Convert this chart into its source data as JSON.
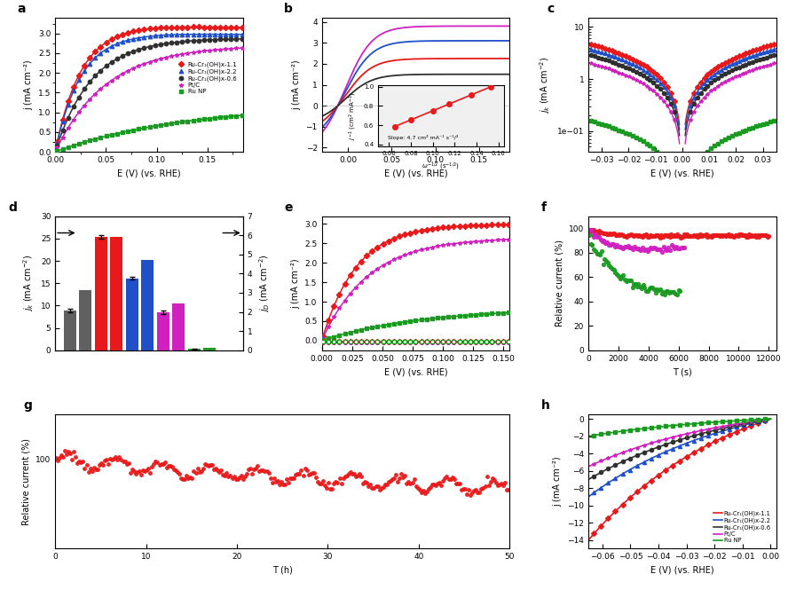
{
  "colors": {
    "red": "#e8191a",
    "blue": "#2050c8",
    "black": "#303030",
    "gray": "#606060",
    "magenta": "#d020c0",
    "green": "#1a9a20"
  },
  "panel_a": {
    "xlabel": "E (V) (vs. RHE)",
    "ylabel": "j (mA cm⁻²)",
    "xlim": [
      0.0,
      0.185
    ],
    "ylim": [
      0.0,
      3.4
    ],
    "legend": [
      "Ru-Cr₁(OH)x-1.1",
      "Ru-Cr₁(OH)x-2.2",
      "Ru-Cr₁(OH)x-0.6",
      "Pt/C",
      "Ru NP"
    ]
  },
  "panel_b": {
    "xlabel": "E (V) (vs. RHE)",
    "ylabel": "j (mA cm⁻²)",
    "xlim": [
      -0.03,
      0.185
    ],
    "ylim": [
      -2.2,
      4.2
    ]
  },
  "panel_c": {
    "xlabel": "E (V) (vs. RHE)",
    "ylabel": "jk (mA cm⁻²)",
    "xlim": [
      -0.035,
      0.035
    ],
    "ylim": [
      0.04,
      15
    ]
  },
  "panel_d": {
    "ylabel_left": "jk (mA cm⁻²)",
    "ylabel_right": "jD (mA cm⁻²)",
    "js_values": [
      8.9,
      25.3,
      16.1,
      8.5,
      0.3
    ],
    "jd_values": [
      3.15,
      5.92,
      4.72,
      2.45,
      0.12
    ],
    "js_errors": [
      0.4,
      0.4,
      0.25,
      0.4,
      0.1
    ],
    "ylim_left": [
      0,
      30
    ],
    "ylim_right": [
      0,
      7
    ]
  },
  "panel_e": {
    "xlabel": "E (V) (vs. RHE)",
    "ylabel": "j (mA cm⁻²)",
    "xlim": [
      0.0,
      0.155
    ],
    "ylim": [
      -0.25,
      3.2
    ]
  },
  "panel_f": {
    "xlabel": "T (s)",
    "ylabel": "Relative current (%)",
    "xlim": [
      0,
      12500
    ],
    "ylim": [
      0,
      110
    ],
    "yticks": [
      0,
      20,
      40,
      60,
      80,
      100
    ]
  },
  "panel_g": {
    "xlabel": "T (h)",
    "ylabel": "Relative current (%)",
    "xlim": [
      0,
      50
    ],
    "ylim": [
      80,
      110
    ],
    "yticks": [
      100
    ]
  },
  "panel_h": {
    "xlabel": "E (V) (vs. RHE)",
    "ylabel": "j (mA cm⁻²)",
    "xlim": [
      -0.065,
      0.002
    ],
    "ylim": [
      -15,
      0.5
    ],
    "legend": [
      "Ru-Cr₁(OH)x-1.1",
      "Ru-Cr₁(OH)x-2.2",
      "Ru-Cr₁(OH)x-0.6",
      "Pt/C",
      "Ru NP"
    ]
  }
}
